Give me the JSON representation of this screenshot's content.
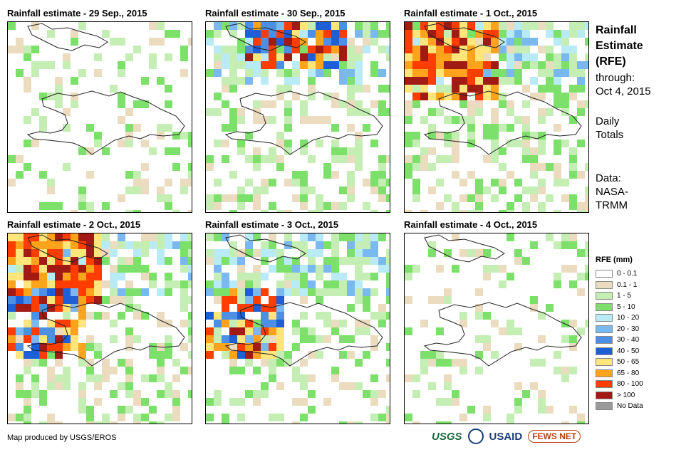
{
  "panels": [
    {
      "title": "Rainfall estimate - 29 Sep., 2015",
      "intensity": 1,
      "heavy": []
    },
    {
      "title": "Rainfall estimate - 30 Sep., 2015",
      "intensity": 2,
      "heavy": [
        "north"
      ]
    },
    {
      "title": "Rainfall estimate - 1 Oct., 2015",
      "intensity": 3,
      "heavy": [
        "northwest"
      ]
    },
    {
      "title": "Rainfall estimate - 2 Oct., 2015",
      "intensity": 3,
      "heavy": [
        "northwest",
        "west"
      ]
    },
    {
      "title": "Rainfall estimate - 3 Oct., 2015",
      "intensity": 2,
      "heavy": [
        "west"
      ]
    },
    {
      "title": "Rainfall estimate - 4 Oct., 2015",
      "intensity": 1,
      "heavy": []
    }
  ],
  "sidebar": {
    "title_line1": "Rainfall",
    "title_line2": "Estimate",
    "title_line3": "(RFE)",
    "through_label": "through:",
    "through_date": "Oct 4, 2015",
    "totals_line1": "Daily",
    "totals_line2": "Totals",
    "data_line1": "Data:",
    "data_line2": "NASA-",
    "data_line3": "TRMM"
  },
  "legend": {
    "title": "RFE (mm)",
    "items": [
      {
        "label": "0 - 0.1",
        "color": "#ffffff"
      },
      {
        "label": "0.1 - 1",
        "color": "#ecdcbf"
      },
      {
        "label": "1 - 5",
        "color": "#c4eeb4"
      },
      {
        "label": "5 - 10",
        "color": "#7ce06a"
      },
      {
        "label": "10 - 20",
        "color": "#b8ebf5"
      },
      {
        "label": "20 - 30",
        "color": "#7ab8f0"
      },
      {
        "label": "30 - 40",
        "color": "#4c8fe5"
      },
      {
        "label": "40 - 50",
        "color": "#1e5fd8"
      },
      {
        "label": "50 - 65",
        "color": "#ffe57a"
      },
      {
        "label": "65 - 80",
        "color": "#ffa21c"
      },
      {
        "label": "80 - 100",
        "color": "#ff3d00"
      },
      {
        "label": "> 100",
        "color": "#a11a14"
      },
      {
        "label": "No Data",
        "color": "#9a9a9a"
      }
    ]
  },
  "footer": {
    "credit": "Map produced by USGS/EROS"
  },
  "logos": {
    "usgs": "USGS",
    "usaid": "USAID",
    "fews": "FEWS NET"
  }
}
